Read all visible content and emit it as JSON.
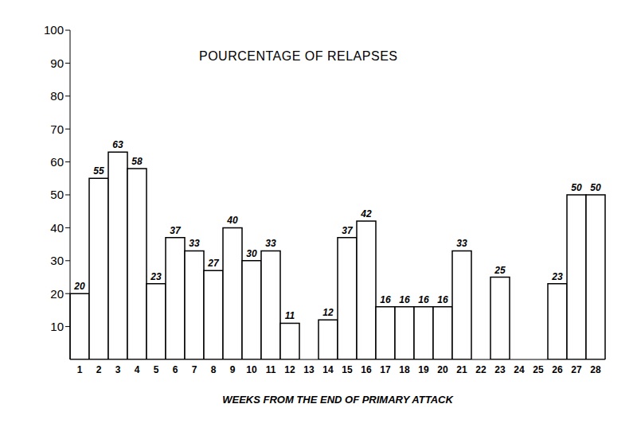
{
  "chart_data": {
    "type": "bar",
    "title": "POURCENTAGE OF RELAPSES",
    "x_label": "WEEKS FROM THE END OF PRIMARY ATTACK",
    "categories": [
      "1",
      "2",
      "3",
      "4",
      "5",
      "6",
      "7",
      "8",
      "9",
      "10",
      "11",
      "12",
      "13",
      "14",
      "15",
      "16",
      "17",
      "18",
      "19",
      "20",
      "21",
      "22",
      "23",
      "24",
      "25",
      "26",
      "27",
      "28"
    ],
    "values": [
      20,
      55,
      63,
      58,
      23,
      37,
      33,
      27,
      40,
      30,
      33,
      11,
      null,
      12,
      37,
      42,
      16,
      16,
      16,
      16,
      33,
      null,
      25,
      null,
      null,
      23,
      50,
      50
    ],
    "color": "#ffffff",
    "ylim": [
      0,
      100
    ],
    "yticks": [
      10,
      20,
      30,
      40,
      50,
      60,
      70,
      80,
      90,
      100
    ],
    "grid": false,
    "data_labels": true
  }
}
